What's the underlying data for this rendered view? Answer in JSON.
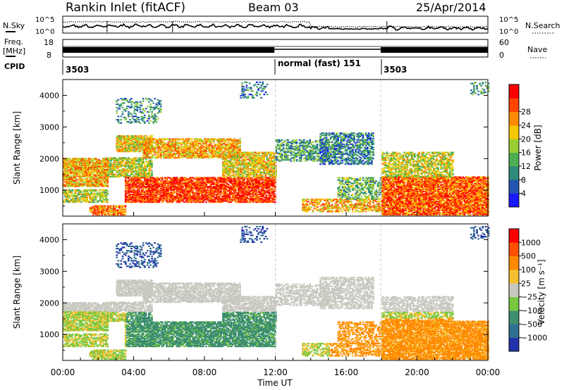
{
  "header": {
    "station": "Rankin Inlet (fitACF)",
    "beam": "Beam 03",
    "date": "25/Apr/2014"
  },
  "noise_panel": {
    "left_label": "N.Sky",
    "right_label": "N.Search",
    "left_ticks": [
      "10^5",
      "10^0"
    ],
    "right_ticks": [
      "10^5",
      "10^0"
    ]
  },
  "freq_panel": {
    "left_label_line1": "Freq.",
    "left_label_line2": "[MHz]",
    "right_label": "Nave",
    "left_ticks": [
      "18",
      "8"
    ],
    "right_ticks": [
      "60",
      "0"
    ]
  },
  "cpid_panel": {
    "label": "CPID",
    "segments": [
      {
        "start_hour": 0,
        "text": "3503"
      },
      {
        "start_hour": 12,
        "text": "normal (fast) 151"
      },
      {
        "start_hour": 17.9,
        "text": "3503"
      }
    ]
  },
  "chart_data": [
    {
      "type": "heatmap",
      "name": "power",
      "ylabel": "Slant Range [km]",
      "yticks": [
        1000,
        2000,
        3000,
        4000
      ],
      "ylim": [
        180,
        4500
      ],
      "xlim": [
        0,
        24
      ],
      "colorbar": {
        "label": "Power [dB]",
        "ticks": [
          "4",
          "8",
          "12",
          "16",
          "20",
          "24",
          "28"
        ],
        "colors": [
          "#1a1aff",
          "#2255b0",
          "#2e8a7a",
          "#4caf50",
          "#9acd32",
          "#f5c800",
          "#ff8c00",
          "#ff4500",
          "#ff0000"
        ]
      }
    },
    {
      "type": "heatmap",
      "name": "velocity",
      "ylabel": "Slant Range [km]",
      "yticks": [
        1000,
        2000,
        3000,
        4000
      ],
      "ylim": [
        180,
        4500
      ],
      "xlim": [
        0,
        24
      ],
      "xticks": [
        "00:00",
        "04:00",
        "08:00",
        "12:00",
        "16:00",
        "20:00",
        "00:00"
      ],
      "xlabel": "Time UT",
      "colorbar": {
        "label": "Velocity [m s⁻¹]",
        "ticks": [
          "1000",
          "500",
          "100",
          "25",
          "−25",
          "−100",
          "−500",
          "−1000"
        ],
        "colors": [
          "#2233aa",
          "#2f7090",
          "#3d8f6e",
          "#79c840",
          "#c8c8c0",
          "#f5c030",
          "#ff8a00",
          "#ff5000",
          "#ff0000"
        ]
      }
    }
  ],
  "colors": {
    "axis": "#000000",
    "marker_line": "#cccccc"
  }
}
